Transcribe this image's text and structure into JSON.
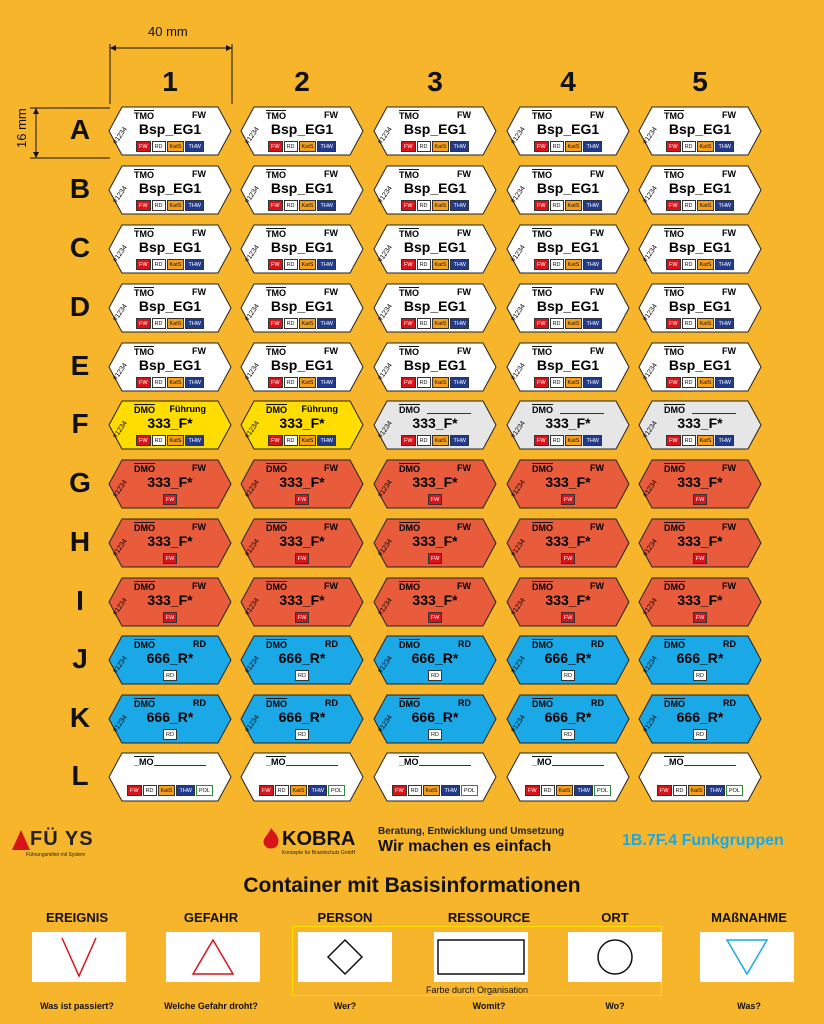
{
  "dimensions": {
    "width_label": "40 mm",
    "height_label": "16 mm"
  },
  "columns": [
    "1",
    "2",
    "3",
    "4",
    "5"
  ],
  "rows": [
    "A",
    "B",
    "C",
    "D",
    "E",
    "F",
    "G",
    "H",
    "I",
    "J",
    "K",
    "L"
  ],
  "tag_types": {
    "white": {
      "left": "TMO",
      "right": "FW",
      "main": "Bsp_EG1",
      "num": "#1234",
      "badges": [
        "FW",
        "RD",
        "KatS",
        "THW"
      ],
      "fill": "#ffffff"
    },
    "yellow": {
      "left": "DMO",
      "right": "Führung",
      "main": "333_F*",
      "num": "#1234",
      "badges": [
        "FW",
        "RD",
        "KatS",
        "THW"
      ],
      "fill": "#ffdd00"
    },
    "grey": {
      "left": "DMO",
      "right": "",
      "main": "333_F*",
      "num": "#1234",
      "badges": [
        "FW",
        "RD",
        "KatS",
        "THW"
      ],
      "fill": "#e6e6e6"
    },
    "red": {
      "left": "DMO",
      "right": "FW",
      "main": "333_F*",
      "num": "#1234",
      "badges": [
        "FW"
      ],
      "fill": "#e85c3c"
    },
    "blue": {
      "left": "DMO",
      "right": "RD",
      "main": "666_R*",
      "num": "#1234",
      "badges": [
        "RD"
      ],
      "fill": "#1aa9e6"
    },
    "blank": {
      "left": "_MO",
      "right": "",
      "main": "",
      "num": "",
      "badges": [
        "FW",
        "RD",
        "KatS",
        "THW",
        "POL"
      ],
      "fill": "#ffffff"
    }
  },
  "row_types": [
    "white",
    "white",
    "white",
    "white",
    "white",
    "mixedF",
    "red",
    "red",
    "red",
    "blue",
    "blue",
    "blank"
  ],
  "colors": {
    "FW": "#d7141a",
    "RD": "#ffffff",
    "KatS": "#f59f1b",
    "THW": "#223a8c",
    "POL": "#ffffff",
    "background": "#f6b52a"
  },
  "footer": {
    "fuxys_name": "FÜ YS",
    "fuxys_tagline": "Führungsmittel mit System",
    "kobra_name": "KOBRA",
    "kobra_tagline": "Konzepte für Brandschutz GmbH",
    "slogan_small": "Beratung, Entwicklung und Umsetzung",
    "slogan_big": "Wir machen es einfach",
    "product_code": "1B.7F.4 Funkgruppen"
  },
  "basis": {
    "title": "Container mit Basisinformationen",
    "org_note": "Farbe durch Organisation",
    "items": [
      {
        "label": "EREIGNIS",
        "question": "Was ist passiert?",
        "icon": "v-icon",
        "color": "#d7141a"
      },
      {
        "label": "GEFAHR",
        "question": "Welche Gefahr droht?",
        "icon": "triangle-icon",
        "color": "#d7141a"
      },
      {
        "label": "PERSON",
        "question": "Wer?",
        "icon": "diamond-icon",
        "color": "#111111"
      },
      {
        "label": "RESSOURCE",
        "question": "Womit?",
        "icon": "rectangle-icon",
        "color": "#111111"
      },
      {
        "label": "ORT",
        "question": "Wo?",
        "icon": "circle-icon",
        "color": "#111111"
      },
      {
        "label": "MAßNAHME",
        "question": "Was?",
        "icon": "down-triangle-icon",
        "color": "#1aa9e6"
      }
    ]
  }
}
